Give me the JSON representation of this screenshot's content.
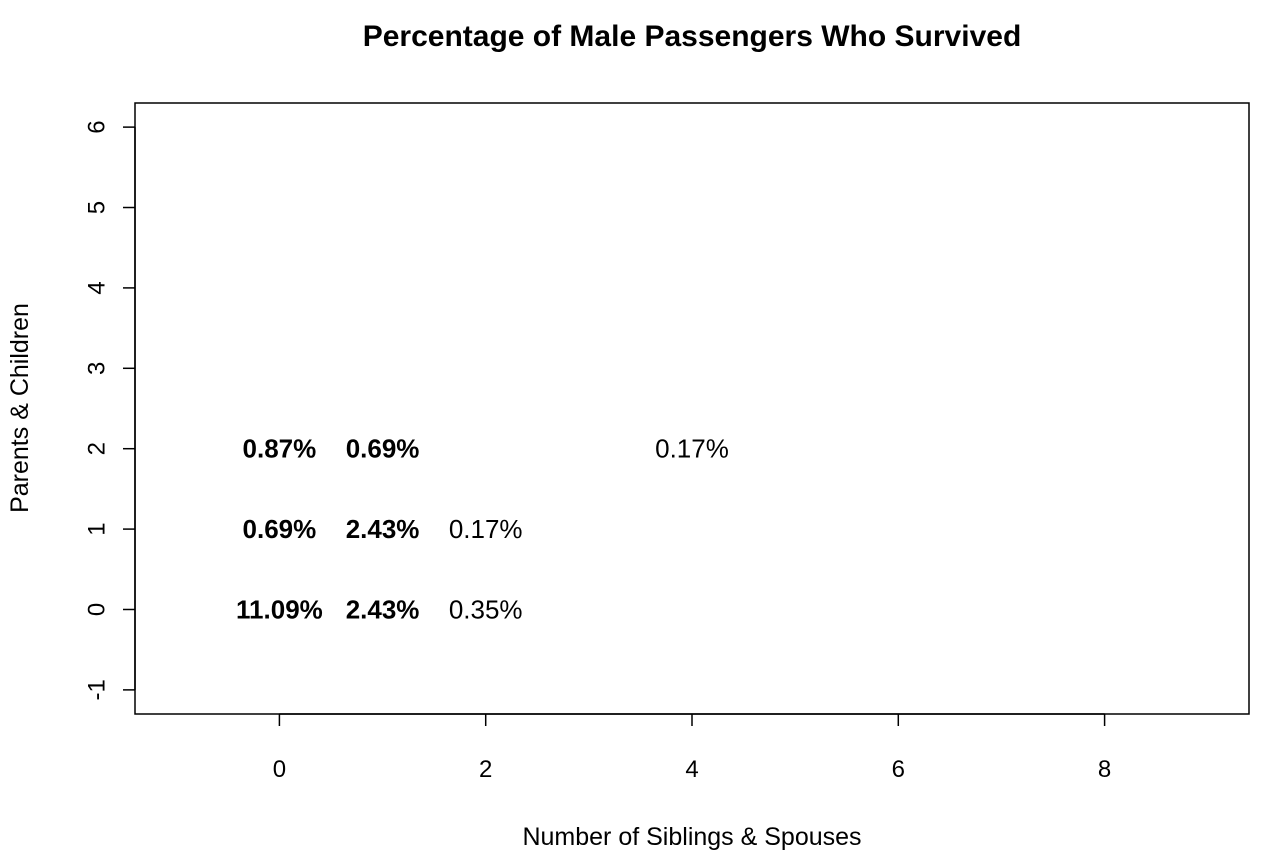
{
  "chart_data": {
    "type": "scatter",
    "title": "Percentage of Male Passengers Who Survived",
    "xlabel": "Number of Siblings & Spouses",
    "ylabel": "Parents & Children",
    "xlim": [
      -1.4,
      9.4
    ],
    "ylim": [
      -1.3,
      6.3
    ],
    "xticks": [
      0,
      2,
      4,
      6,
      8
    ],
    "yticks": [
      -1,
      0,
      1,
      2,
      3,
      4,
      5,
      6
    ],
    "grid": false,
    "legend": "none",
    "points": [
      {
        "x": 0,
        "y": 0,
        "label": "11.09%",
        "bold": true
      },
      {
        "x": 1,
        "y": 0,
        "label": "2.43%",
        "bold": true
      },
      {
        "x": 2,
        "y": 0,
        "label": "0.35%",
        "bold": false
      },
      {
        "x": 0,
        "y": 1,
        "label": "0.69%",
        "bold": true
      },
      {
        "x": 1,
        "y": 1,
        "label": "2.43%",
        "bold": true
      },
      {
        "x": 2,
        "y": 1,
        "label": "0.17%",
        "bold": false
      },
      {
        "x": 0,
        "y": 2,
        "label": "0.87%",
        "bold": true
      },
      {
        "x": 1,
        "y": 2,
        "label": "0.69%",
        "bold": true
      },
      {
        "x": 4,
        "y": 2,
        "label": "0.17%",
        "bold": false
      }
    ]
  }
}
